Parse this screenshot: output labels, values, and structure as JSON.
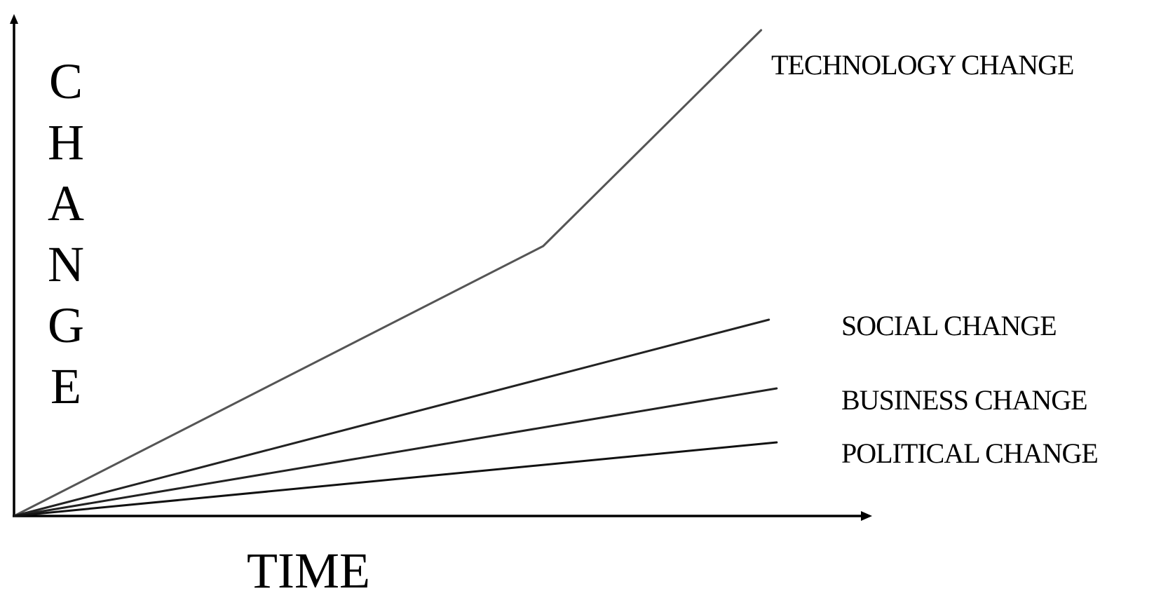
{
  "chart_data": {
    "type": "line",
    "xlabel": "TIME",
    "ylabel": "CHANGE",
    "xlim": [
      0,
      100
    ],
    "ylim": [
      0,
      100
    ],
    "grid": false,
    "legend": "none",
    "series": [
      {
        "name": "TECHNOLOGY CHANGE",
        "color": "#555555",
        "x": [
          0,
          68,
          96
        ],
        "y": [
          0,
          55,
          99
        ]
      },
      {
        "name": "SOCIAL CHANGE",
        "color": "#222222",
        "x": [
          0,
          97
        ],
        "y": [
          0,
          40
        ]
      },
      {
        "name": "BUSINESS CHANGE",
        "color": "#222222",
        "x": [
          0,
          98
        ],
        "y": [
          0,
          26
        ]
      },
      {
        "name": "POLITICAL CHANGE",
        "color": "#111111",
        "x": [
          0,
          98
        ],
        "y": [
          0,
          15
        ]
      }
    ]
  }
}
